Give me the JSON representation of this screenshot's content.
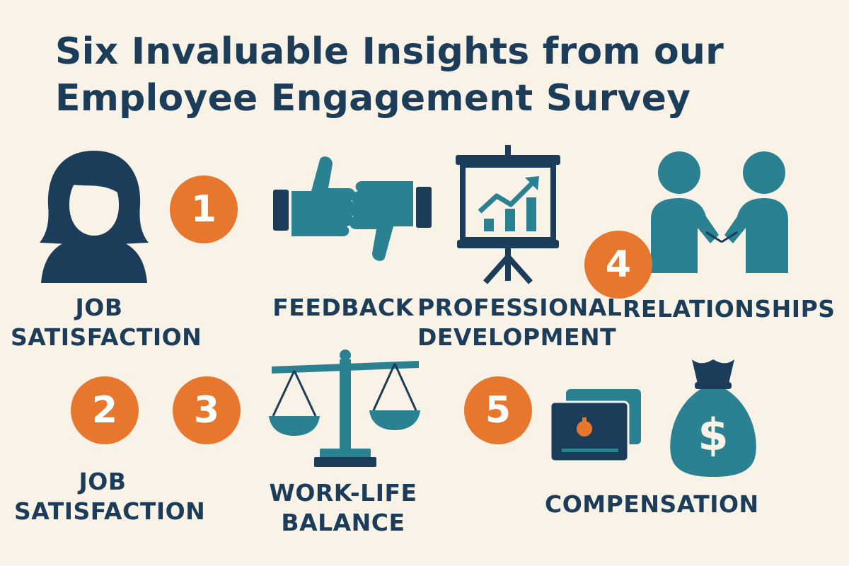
{
  "title": {
    "line1": "Six Invaluable Insights from our",
    "line2": "Employee Engagement Survey"
  },
  "badges": [
    "1",
    "2",
    "3",
    "4",
    "5"
  ],
  "labels": {
    "job_satisfaction_top": [
      "JOB",
      "SATISFACTION"
    ],
    "feedback": "FEEDBACK",
    "professional_development": [
      "PROFESSIONAL",
      "DEVELOPMENT"
    ],
    "relationships": "RELATIONSHIPS",
    "job_satisfaction_bottom": [
      "JOB",
      "SATISFACTION"
    ],
    "work_life_balance": [
      "WORK-LIFE",
      "BALANCE"
    ],
    "compensation": "COMPENSATION"
  },
  "icons": {
    "person": "woman-avatar-icon",
    "thumbs": "thumbs-up-down-icon",
    "presentation": "growth-chart-board-icon",
    "handshake": "handshake-icon",
    "scale": "balance-scale-icon",
    "cards": "cash-cards-icon",
    "money_bag": "money-bag-icon"
  },
  "colors": {
    "navy": "#1c3d5a",
    "teal": "#2a8191",
    "orange": "#e8772e",
    "background": "#f9f2e6"
  }
}
